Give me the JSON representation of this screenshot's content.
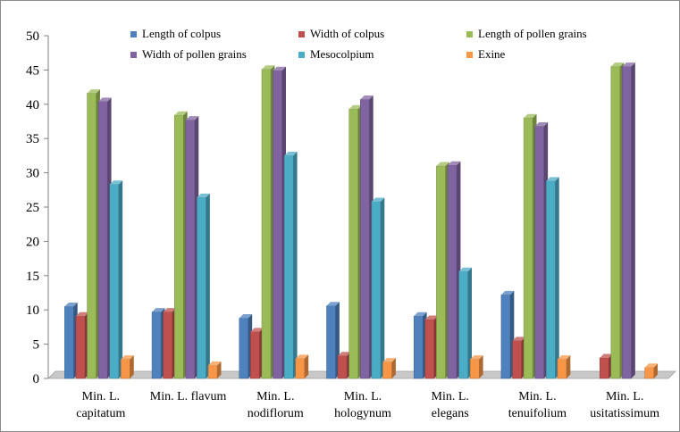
{
  "chart_data": {
    "type": "bar",
    "title": "",
    "xlabel": "",
    "ylabel": "",
    "ylim": [
      0,
      50
    ],
    "yticks": [
      "0",
      "5",
      "10",
      "15",
      "20",
      "25",
      "30",
      "35",
      "40",
      "45",
      "50"
    ],
    "grid": false,
    "legend_position": "top",
    "categories": [
      [
        "Min. L.",
        "capitatum"
      ],
      [
        "Min. L. flavum"
      ],
      [
        "Min. L.",
        "nodiflorum"
      ],
      [
        "Min. L.",
        "hologynum"
      ],
      [
        "Min. L.",
        "elegans"
      ],
      [
        "Min. L.",
        "tenuifolium"
      ],
      [
        "Min. L.",
        "usitatissimum"
      ]
    ],
    "series": [
      {
        "name": "Length of colpus",
        "color": "#4f81bd",
        "values": [
          10.5,
          9.7,
          8.8,
          10.6,
          9.1,
          12.2,
          0
        ]
      },
      {
        "name": "Width of colpus",
        "color": "#c0504d",
        "values": [
          9.1,
          9.7,
          6.8,
          3.3,
          8.6,
          5.5,
          3.0
        ]
      },
      {
        "name": "Length of pollen grains",
        "color": "#9bbb59",
        "values": [
          41.6,
          38.4,
          45.1,
          39.3,
          31.0,
          38.0,
          45.5
        ]
      },
      {
        "name": "Width of pollen grains",
        "color": "#8064a2",
        "values": [
          40.4,
          37.7,
          44.9,
          40.7,
          31.1,
          36.8,
          45.5
        ]
      },
      {
        "name": "Mesocolpium",
        "color": "#4bacc6",
        "values": [
          28.3,
          26.4,
          32.5,
          25.8,
          15.6,
          28.8,
          0
        ]
      },
      {
        "name": "Exine",
        "color": "#f79646",
        "values": [
          2.8,
          1.9,
          2.9,
          2.4,
          2.8,
          2.8,
          1.6
        ]
      }
    ]
  }
}
